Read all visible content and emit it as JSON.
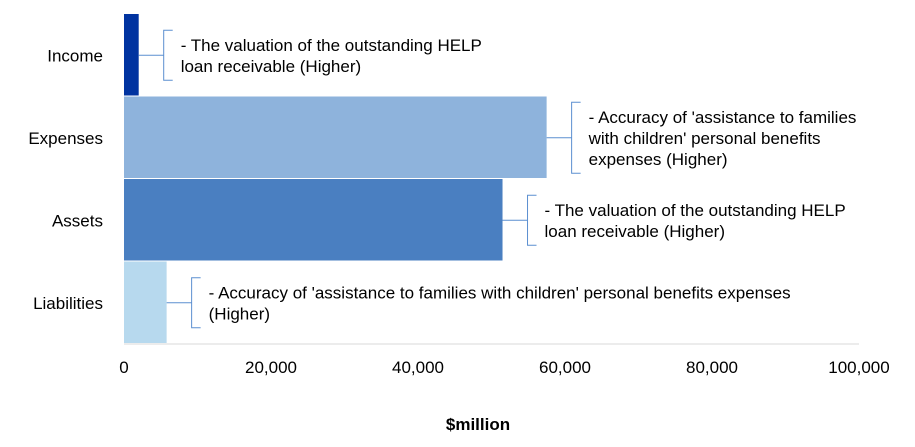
{
  "chart_data": {
    "type": "bar",
    "orientation": "horizontal",
    "categories": [
      "Income",
      "Expenses",
      "Assets",
      "Liabilities"
    ],
    "values": [
      2000,
      57500,
      51500,
      5800
    ],
    "xlabel": "$million",
    "xlim": [
      0,
      100000
    ],
    "ticks": [
      "0",
      "20,000",
      "40,000",
      "60,000",
      "80,000",
      "100,000"
    ],
    "tick_values": [
      0,
      20000,
      40000,
      60000,
      80000,
      100000
    ],
    "grid": false,
    "colors": [
      "#0033a0",
      "#8eb3dc",
      "#4a7fc1",
      "#b7d9ee"
    ],
    "bracket_color": "#5b8fd0",
    "annotations": [
      [
        "- The valuation of the outstanding HELP",
        "loan receivable (Higher)"
      ],
      [
        "- Accuracy of 'assistance to families",
        "with children' personal benefits",
        "expenses (Higher)"
      ],
      [
        "- The valuation of the outstanding HELP",
        "loan receivable (Higher)"
      ],
      [
        "- Accuracy of 'assistance to families with children' personal benefits expenses",
        "(Higher)"
      ]
    ]
  }
}
